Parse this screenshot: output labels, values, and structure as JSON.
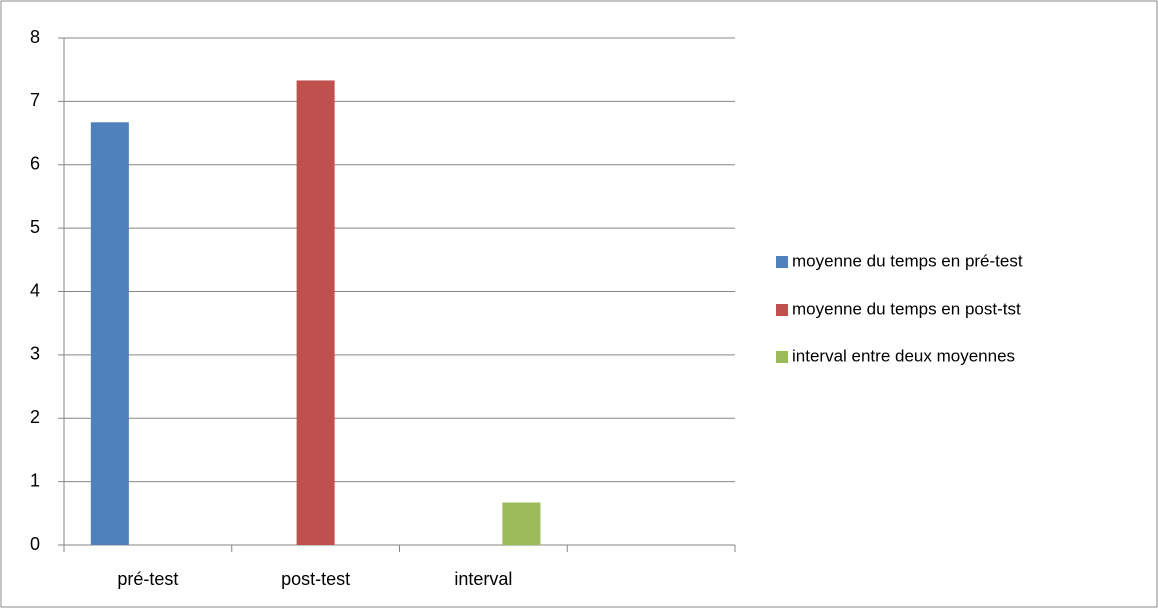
{
  "chart_data": {
    "type": "bar",
    "categories": [
      "pré-test",
      "post-test",
      "interval",
      null
    ],
    "series": [
      {
        "name": "moyenne du temps en pré-test",
        "color": "#4f81bd",
        "values": [
          6.67,
          null,
          null,
          null
        ]
      },
      {
        "name": "moyenne du temps en post-tst",
        "color": "#c0504d",
        "values": [
          null,
          7.33,
          null,
          null
        ]
      },
      {
        "name": "interval entre deux moyennes",
        "color": "#9bbb59",
        "values": [
          null,
          null,
          0.67,
          null
        ]
      }
    ],
    "ylim": [
      0,
      8
    ],
    "yticks": [
      0,
      1,
      2,
      3,
      4,
      5,
      6,
      7,
      8
    ],
    "grid": true,
    "legend": "right"
  }
}
